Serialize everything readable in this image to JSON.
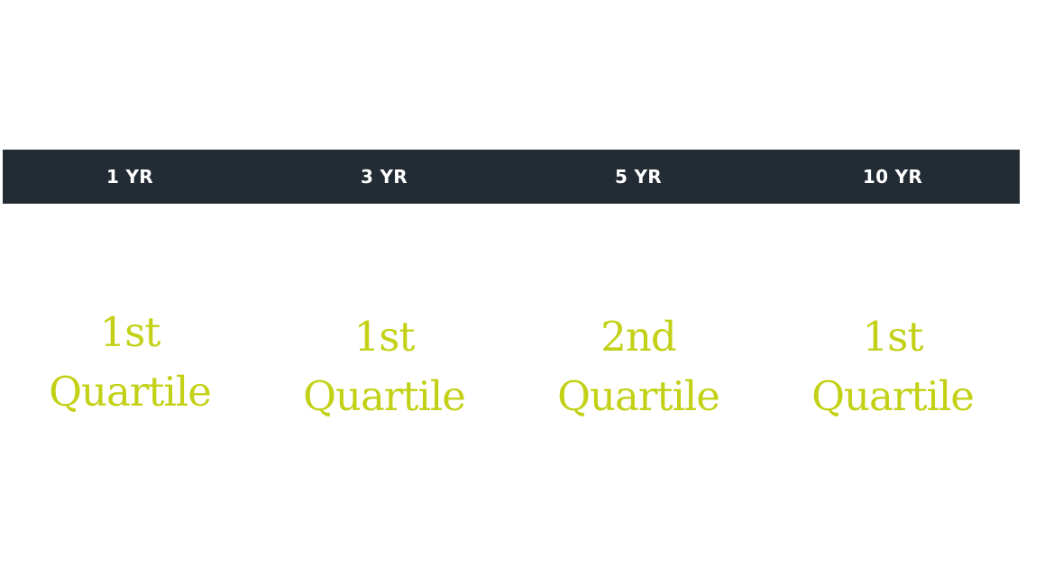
{
  "periods": [
    {
      "label": "1 YR",
      "rank": "1st",
      "unit": "Quartile"
    },
    {
      "label": "3 YR",
      "rank": "1st",
      "unit": "Quartile"
    },
    {
      "label": "5 YR",
      "rank": "2nd",
      "unit": "Quartile"
    },
    {
      "label": "10 YR",
      "rank": "1st",
      "unit": "Quartile"
    }
  ],
  "colors": {
    "header_background": "#232c34",
    "header_text": "#ffffff",
    "accent": "#c3d116",
    "page_background": "#ffffff"
  }
}
